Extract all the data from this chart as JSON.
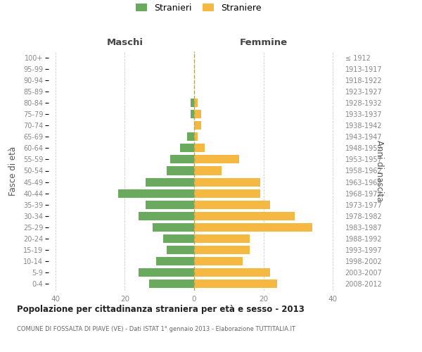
{
  "age_groups_bottom_to_top": [
    "0-4",
    "5-9",
    "10-14",
    "15-19",
    "20-24",
    "25-29",
    "30-34",
    "35-39",
    "40-44",
    "45-49",
    "50-54",
    "55-59",
    "60-64",
    "65-69",
    "70-74",
    "75-79",
    "80-84",
    "85-89",
    "90-94",
    "95-99",
    "100+"
  ],
  "birth_years_bottom_to_top": [
    "2008-2012",
    "2003-2007",
    "1998-2002",
    "1993-1997",
    "1988-1992",
    "1983-1987",
    "1978-1982",
    "1973-1977",
    "1968-1972",
    "1963-1967",
    "1958-1962",
    "1953-1957",
    "1948-1952",
    "1943-1947",
    "1938-1942",
    "1933-1937",
    "1928-1932",
    "1923-1927",
    "1918-1922",
    "1913-1917",
    "≤ 1912"
  ],
  "males_bottom_to_top": [
    13,
    16,
    11,
    8,
    9,
    12,
    16,
    14,
    22,
    14,
    8,
    7,
    4,
    2,
    0,
    1,
    1,
    0,
    0,
    0,
    0
  ],
  "females_bottom_to_top": [
    24,
    22,
    14,
    16,
    16,
    34,
    29,
    22,
    19,
    19,
    8,
    13,
    3,
    1,
    2,
    2,
    1,
    0,
    0,
    0,
    0
  ],
  "male_color": "#6aaa5e",
  "female_color": "#f5b942",
  "background_color": "#ffffff",
  "grid_color": "#cccccc",
  "title": "Popolazione per cittadinanza straniera per età e sesso - 2013",
  "subtitle": "COMUNE DI FOSSALTA DI PIAVE (VE) - Dati ISTAT 1° gennaio 2013 - Elaborazione TUTTITALIA.IT",
  "xlabel_left": "Maschi",
  "xlabel_right": "Femmine",
  "ylabel_left": "Fasce di età",
  "ylabel_right": "Anni di nascita",
  "legend_male": "Stranieri",
  "legend_female": "Straniere",
  "xlim": 42,
  "xticks": [
    -40,
    -20,
    0,
    20,
    40
  ],
  "xtick_labels": [
    "40",
    "20",
    "0",
    "20",
    "40"
  ]
}
